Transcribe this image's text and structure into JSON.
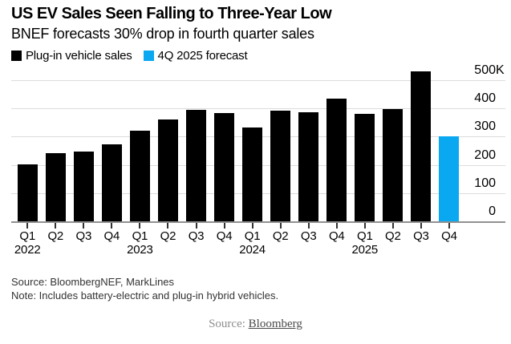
{
  "header": {
    "title": "US EV Sales Seen Falling to Three-Year Low",
    "subtitle": "BNEF forecasts 30% drop in fourth quarter sales"
  },
  "legend": [
    {
      "label": "Plug-in vehicle sales",
      "color": "#000000"
    },
    {
      "label": "4Q 2025 forecast",
      "color": "#0aa8f0"
    }
  ],
  "chart_data": {
    "type": "bar",
    "title": "US EV Sales Seen Falling to Three-Year Low",
    "subtitle": "BNEF forecasts 30% drop in fourth quarter sales",
    "unit": "K",
    "categories": [
      "Q1 2022",
      "Q2 2022",
      "Q3 2022",
      "Q4 2022",
      "Q1 2023",
      "Q2 2023",
      "Q3 2023",
      "Q4 2023",
      "Q1 2024",
      "Q2 2024",
      "Q3 2024",
      "Q4 2024",
      "Q1 2025",
      "Q2 2025",
      "Q3 2025",
      "Q4 2025"
    ],
    "values": [
      203,
      241,
      247,
      274,
      322,
      362,
      396,
      384,
      333,
      393,
      386,
      434,
      382,
      398,
      531,
      302
    ],
    "series_name": "Plug-in vehicle sales",
    "forecast_index": 15,
    "forecast_name": "4Q 2025 forecast",
    "colors": {
      "actual": "#000000",
      "forecast": "#0aa8f0"
    },
    "ylim": [
      0,
      500
    ],
    "yticks": [
      0,
      100,
      200,
      300,
      400,
      500
    ],
    "ytick_labels": [
      "0",
      "100",
      "200",
      "300",
      "400",
      "500K"
    ],
    "year_labels": {
      "0": "2022",
      "4": "2023",
      "8": "2024",
      "12": "2025"
    },
    "grid": true,
    "legend_position": "top",
    "ylabel_side": "right"
  },
  "footer": {
    "source": "Source: BloombergNEF, MarkLines",
    "note": "Note: Includes battery-electric and plug-in hybrid vehicles."
  },
  "caption": {
    "prefix": "Source: ",
    "link": "Bloomberg"
  }
}
